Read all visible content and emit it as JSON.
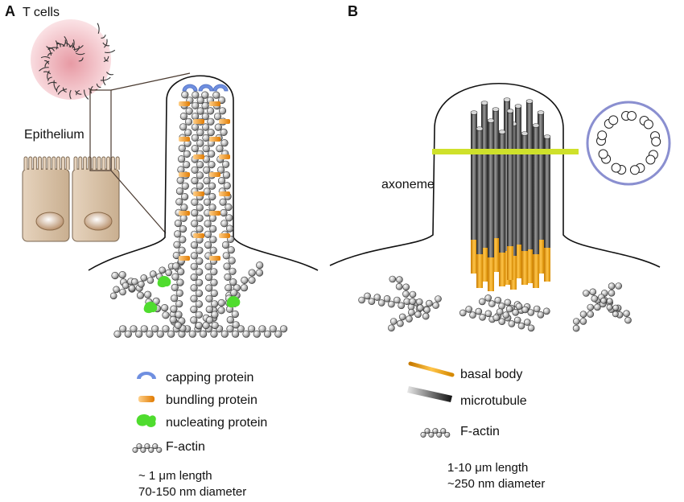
{
  "panel_a": {
    "letter": "A",
    "label_t_cells": "T cells",
    "label_epithelium": "Epithelium",
    "legend": {
      "capping": "capping protein",
      "bundling": "bundling protein",
      "nucleating": "nucleating protein",
      "factin": "F-actin"
    },
    "dimension_length": "~ 1 μm length",
    "dimension_diameter": "70-150 nm diameter"
  },
  "panel_b": {
    "letter": "B",
    "label_axoneme": "axoneme",
    "legend": {
      "basal_body": "basal body",
      "microtubule": "microtubule",
      "factin": "F-actin"
    },
    "dimension_length": "1-10 μm length",
    "dimension_diameter": "~250 nm diameter"
  },
  "colors": {
    "capping": "#6f8fe0",
    "bundling": "#f0920c",
    "nucleating": "#4fdc2e",
    "actin_bead": "#8a8a8a",
    "microtubule": "#444444",
    "basal_body": "#f1a31a",
    "cross_section_ring": "#8a8fd0",
    "section_line": "#cfe12b",
    "t_cell": "#f1b8bf",
    "epithelium": "#d9c4a8"
  }
}
